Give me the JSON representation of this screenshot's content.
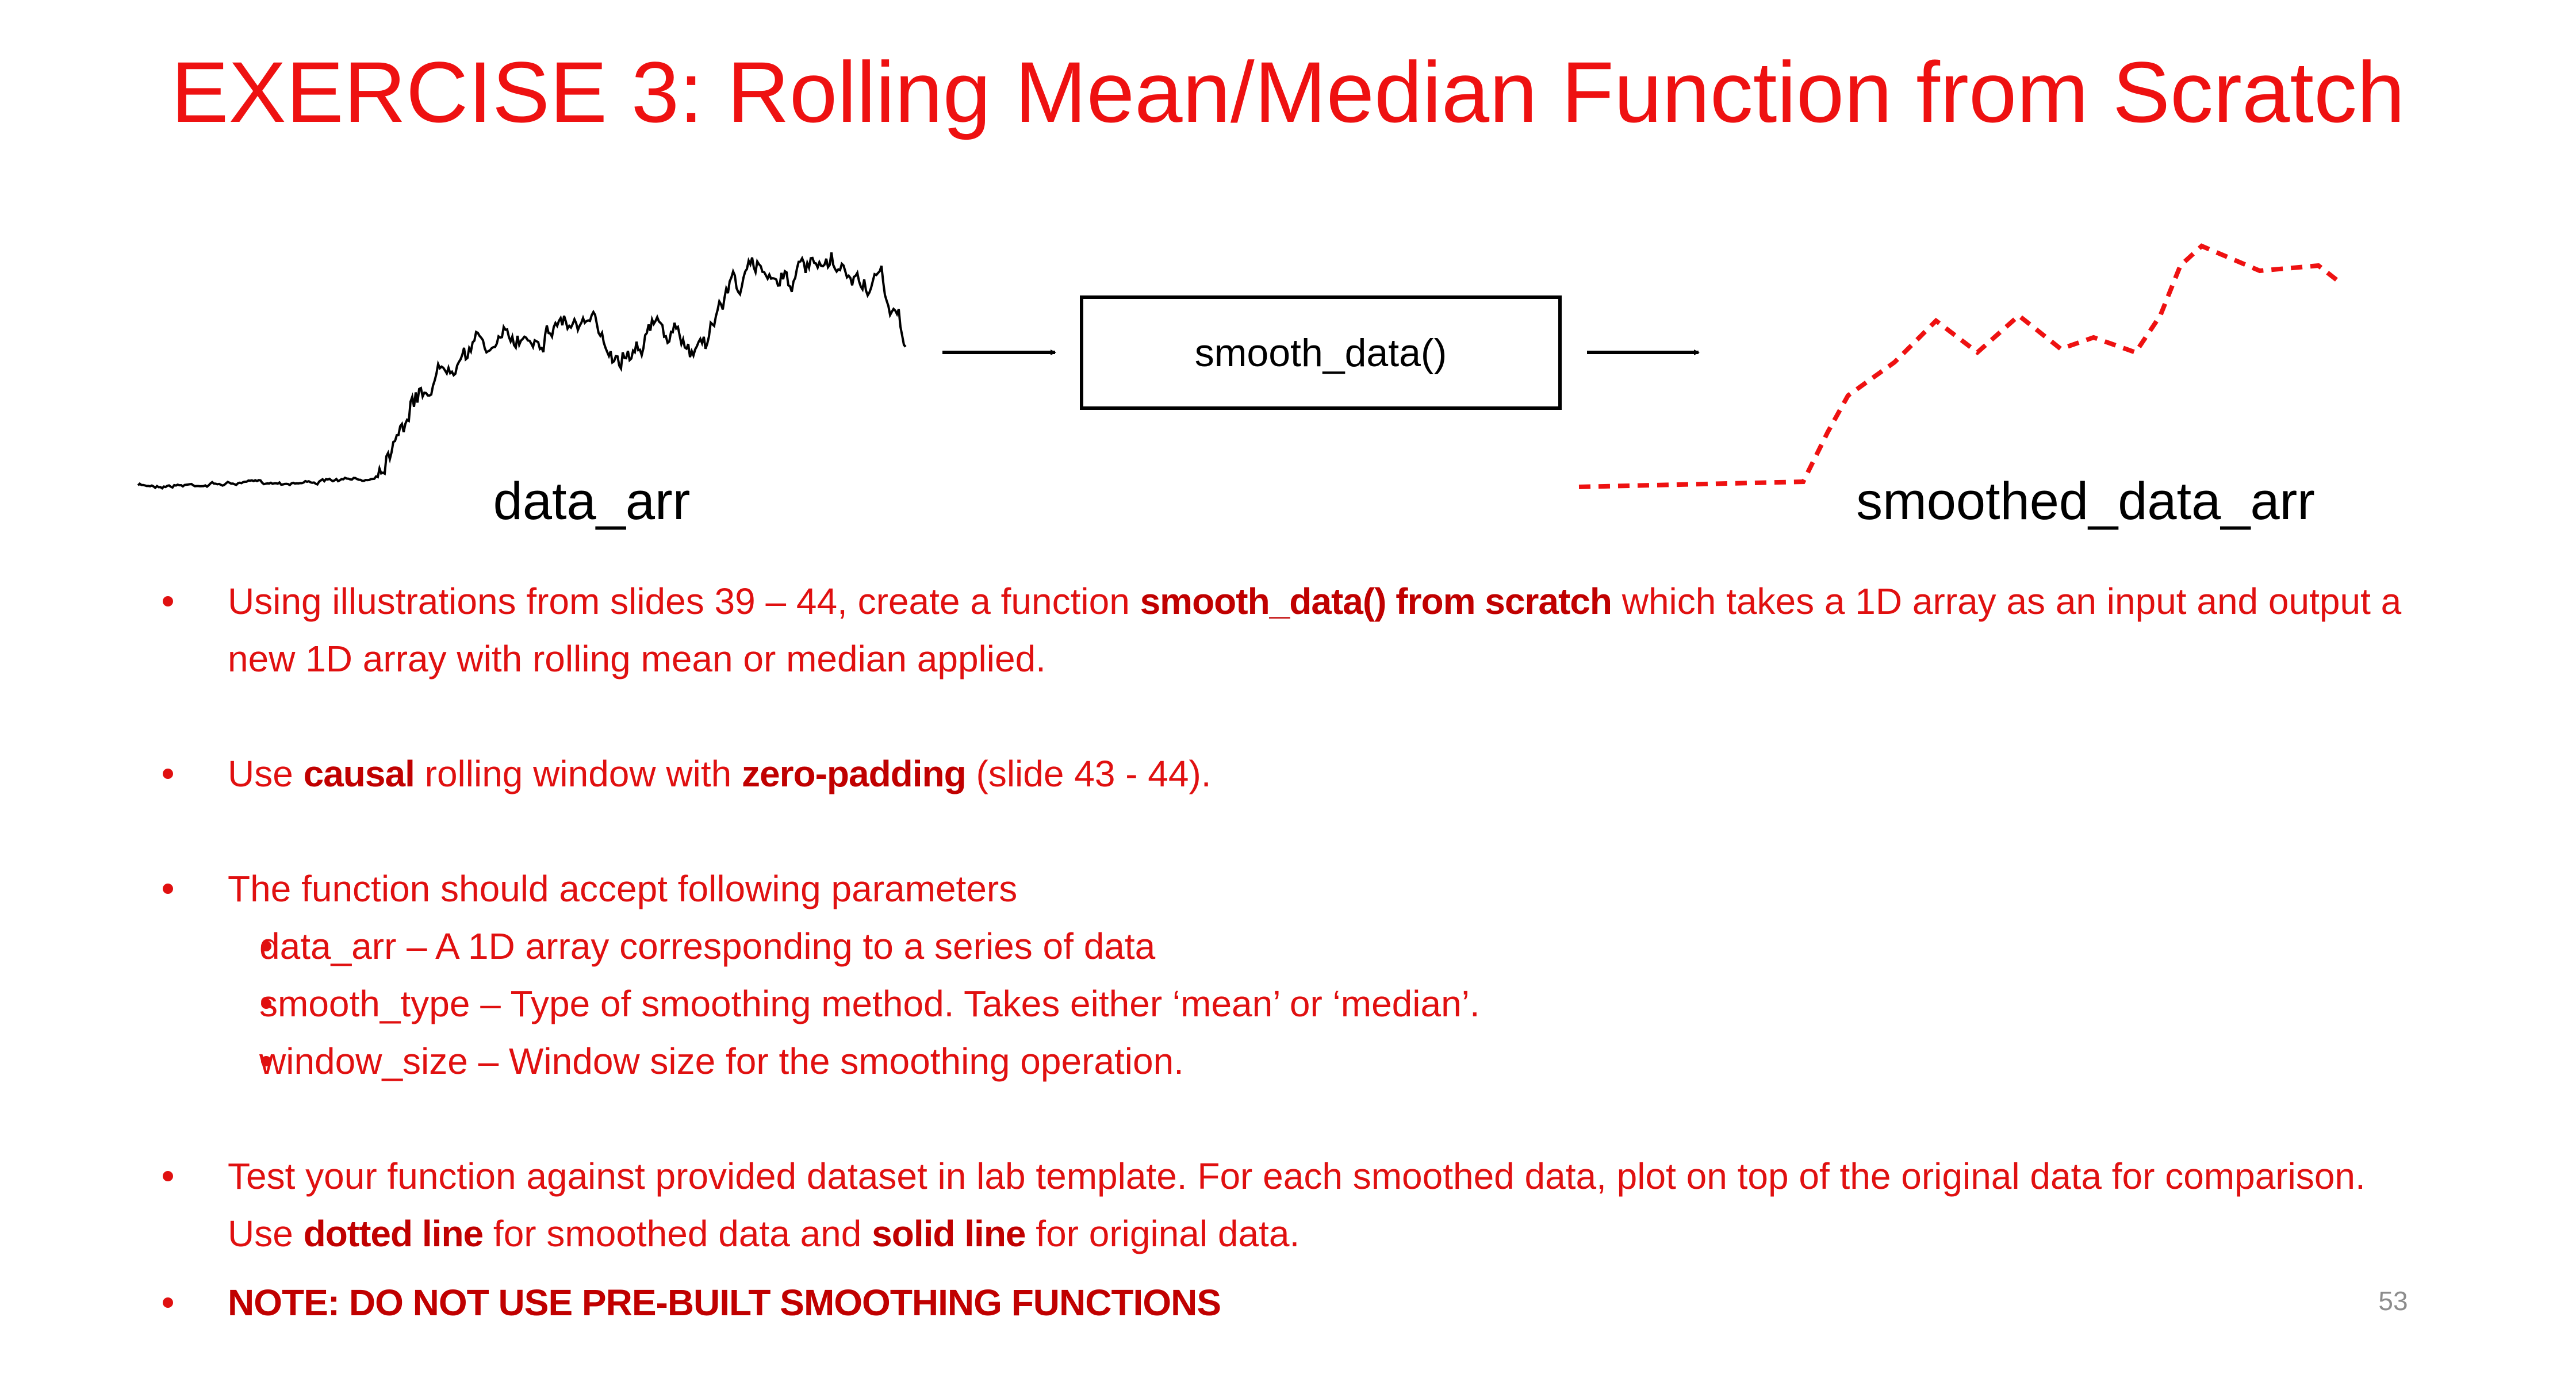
{
  "title": "EXERCISE 3: Rolling Mean/Median Function from Scratch",
  "diagram": {
    "input_label": "data_arr",
    "function_label": "smooth_data()",
    "output_label": "smoothed_data_arr"
  },
  "bullets": [
    {
      "segments": [
        {
          "text": "Using illustrations from slides 39 – 44, create a function ",
          "emphasis": false
        },
        {
          "text": "smooth_data() from scratch",
          "emphasis": true
        },
        {
          "text": " which takes a 1D array as an input and output a new 1D array with rolling mean or median applied.",
          "emphasis": false
        }
      ],
      "sub_bullets": []
    },
    {
      "segments": [
        {
          "text": "Use ",
          "emphasis": false
        },
        {
          "text": "causal",
          "emphasis": true
        },
        {
          "text": " rolling window with ",
          "emphasis": false
        },
        {
          "text": "zero-padding",
          "emphasis": true
        },
        {
          "text": " (slide 43 - 44).",
          "emphasis": false
        }
      ],
      "sub_bullets": []
    },
    {
      "segments": [
        {
          "text": "The function should accept following parameters",
          "emphasis": false
        }
      ],
      "sub_bullets": [
        "data_arr – A 1D array corresponding to a series of data",
        "smooth_type – Type of smoothing method. Takes either ‘mean’ or ‘median’.",
        "window_size – Window size for the smoothing operation."
      ]
    },
    {
      "segments": [
        {
          "text": "Test your function against provided dataset in lab template. For each smoothed data, plot on top of the original data for comparison. Use ",
          "emphasis": false
        },
        {
          "text": "dotted line",
          "emphasis": true
        },
        {
          "text": " for smoothed data and ",
          "emphasis": false
        },
        {
          "text": "solid line",
          "emphasis": true
        },
        {
          "text": " for original data.",
          "emphasis": false
        }
      ],
      "sub_bullets": []
    },
    {
      "segments": [
        {
          "text": "NOTE: DO NOT USE PRE-BUILT SMOOTHING FUNCTIONS",
          "emphasis": true
        }
      ],
      "sub_bullets": []
    }
  ],
  "page_number": "53"
}
